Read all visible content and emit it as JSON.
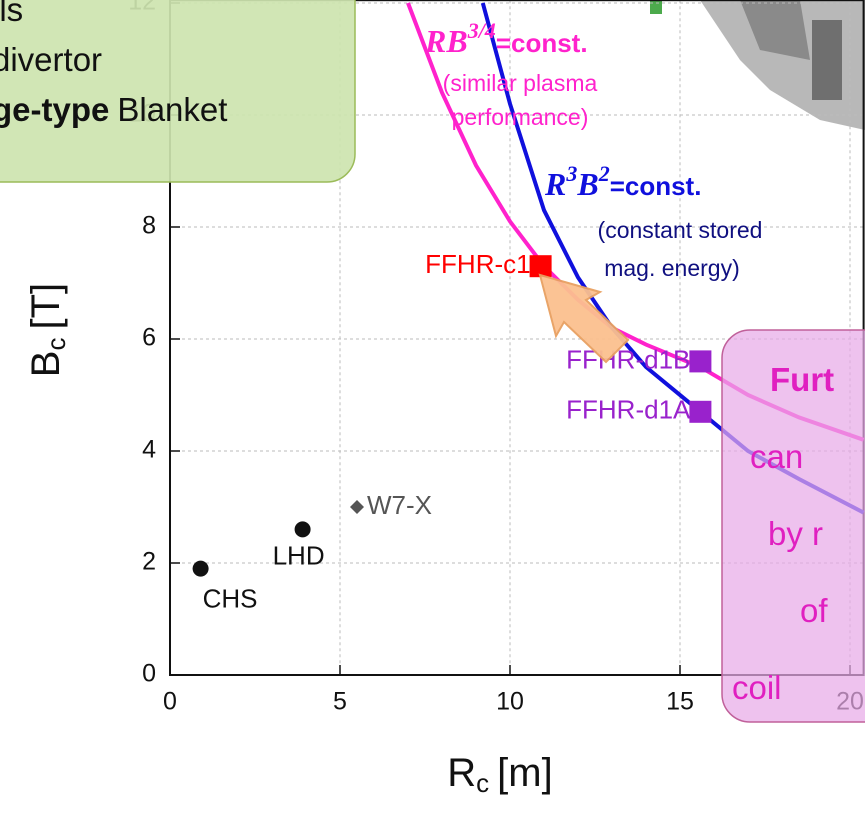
{
  "callouts": {
    "green": {
      "lines": [
        {
          "text": "ils"
        },
        {
          "text": "divertor"
        },
        {
          "bold": "ge-type",
          "text": "Blanket"
        }
      ]
    },
    "pink": {
      "lines": [
        {
          "bold": "Furt"
        },
        {
          "text": "can"
        },
        {
          "text": "by r"
        },
        {
          "text": "of"
        },
        {
          "text": "coil"
        }
      ]
    }
  },
  "chart_data": {
    "type": "scatter",
    "x_label": {
      "main": "R",
      "sub": "c",
      "unit": "[m]"
    },
    "y_label": {
      "main": "B",
      "sub": "c",
      "unit": "[T]"
    },
    "xlim": [
      0,
      20.4
    ],
    "ylim": [
      0,
      12.05
    ],
    "xticks": [
      0,
      5,
      10,
      15,
      20
    ],
    "yticks": [
      0,
      2,
      4,
      6,
      8,
      10,
      12
    ],
    "grid": true,
    "series": [
      {
        "name": "CHS",
        "color": "#111111",
        "marker": "circle",
        "x": [
          0.9
        ],
        "values": [
          1.9
        ]
      },
      {
        "name": "LHD",
        "color": "#111111",
        "marker": "circle",
        "x": [
          3.9
        ],
        "values": [
          2.6
        ]
      },
      {
        "name": "W7-X",
        "color": "#555555",
        "marker": "diamond",
        "x": [
          5.5
        ],
        "values": [
          3.0
        ]
      },
      {
        "name": "FFHR-c1",
        "color": "#ff0000",
        "marker": "square",
        "x": [
          10.9
        ],
        "values": [
          7.3
        ]
      },
      {
        "name": "FFHR-d1B",
        "color": "#9922cc",
        "marker": "square",
        "x": [
          15.6
        ],
        "values": [
          5.6
        ]
      },
      {
        "name": "FFHR-d1A",
        "color": "#9922cc",
        "marker": "square",
        "x": [
          15.6
        ],
        "values": [
          4.7
        ]
      }
    ],
    "curves": [
      {
        "color": "#ff22cc",
        "x": [
          7.0,
          8,
          9,
          10,
          11,
          12,
          13,
          14,
          15.6,
          17,
          18.5,
          20.4
        ],
        "values": [
          12,
          10.4,
          9.1,
          8.1,
          7.3,
          6.7,
          6.2,
          5.9,
          5.5,
          5.0,
          4.6,
          4.2
        ]
      },
      {
        "color": "#1010dd",
        "x": [
          9.2,
          10,
          11,
          12,
          13,
          14,
          15.6,
          17,
          18.5,
          20.4
        ],
        "values": [
          12,
          10.2,
          8.3,
          7.1,
          6.2,
          5.5,
          4.7,
          4.0,
          3.5,
          2.9
        ]
      }
    ],
    "annotations": {
      "rb": {
        "base": "RB",
        "sup": "3/4",
        "rest": "=const.",
        "color": "#ff22cc"
      },
      "rb_note": {
        "lines": [
          "(similar plasma",
          "performance)"
        ],
        "color": "#ff22cc"
      },
      "r3b2": {
        "base1": "R",
        "sup1": "3",
        "base2": "B",
        "sup2": "2",
        "rest": "=const.",
        "color": "#1010dd"
      },
      "r3b2_note": {
        "lines": [
          "(constant stored",
          "mag. energy)"
        ],
        "color": "#101080"
      }
    }
  }
}
